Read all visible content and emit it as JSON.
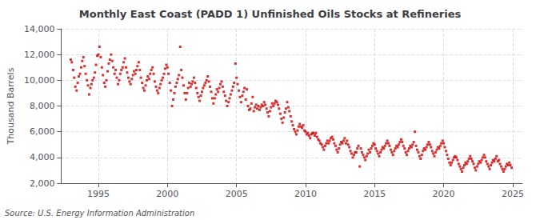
{
  "chart_data": {
    "type": "scatter",
    "title": "Monthly East Coast (PADD 1) Unfinished Oils Stocks at Refineries",
    "ylabel": "Thousand Barrels",
    "annotation": "Source: U.S. Energy Information Administration",
    "color": "#cc0000",
    "marker": "square",
    "grid": true,
    "xlim": [
      1992.3,
      2025.7
    ],
    "xticks": [
      1995,
      2000,
      2005,
      2010,
      2015,
      2020,
      2025
    ],
    "ylim": [
      2000,
      14000
    ],
    "yticks": [
      {
        "value": 2000,
        "label": "2,000"
      },
      {
        "value": 4000,
        "label": "4,000"
      },
      {
        "value": 6000,
        "label": "6,000"
      },
      {
        "value": 8000,
        "label": "8,000"
      },
      {
        "value": 10000,
        "label": "10,000"
      },
      {
        "value": 12000,
        "label": "12,000"
      },
      {
        "value": 14000,
        "label": "14,000"
      }
    ],
    "x": [
      1993.0,
      1993.08,
      1993.17,
      1993.25,
      1993.33,
      1993.42,
      1993.5,
      1993.58,
      1993.67,
      1993.75,
      1993.83,
      1993.92,
      1994.0,
      1994.08,
      1994.17,
      1994.25,
      1994.33,
      1994.42,
      1994.5,
      1994.58,
      1994.67,
      1994.75,
      1994.83,
      1994.92,
      1995.0,
      1995.08,
      1995.17,
      1995.25,
      1995.33,
      1995.42,
      1995.5,
      1995.58,
      1995.67,
      1995.75,
      1995.83,
      1995.92,
      1996.0,
      1996.08,
      1996.17,
      1996.25,
      1996.33,
      1996.42,
      1996.5,
      1996.58,
      1996.67,
      1996.75,
      1996.83,
      1996.92,
      1997.0,
      1997.08,
      1997.17,
      1997.25,
      1997.33,
      1997.42,
      1997.5,
      1997.58,
      1997.67,
      1997.75,
      1997.83,
      1997.92,
      1998.0,
      1998.08,
      1998.17,
      1998.25,
      1998.33,
      1998.42,
      1998.5,
      1998.58,
      1998.67,
      1998.75,
      1998.83,
      1998.92,
      1999.0,
      1999.08,
      1999.17,
      1999.25,
      1999.33,
      1999.42,
      1999.5,
      1999.58,
      1999.67,
      1999.75,
      1999.83,
      1999.92,
      2000.0,
      2000.08,
      2000.17,
      2000.25,
      2000.33,
      2000.42,
      2000.5,
      2000.58,
      2000.67,
      2000.75,
      2000.83,
      2000.92,
      2001.0,
      2001.08,
      2001.17,
      2001.25,
      2001.33,
      2001.42,
      2001.5,
      2001.58,
      2001.67,
      2001.75,
      2001.83,
      2001.92,
      2002.0,
      2002.08,
      2002.17,
      2002.25,
      2002.33,
      2002.42,
      2002.5,
      2002.58,
      2002.67,
      2002.75,
      2002.83,
      2002.92,
      2003.0,
      2003.08,
      2003.17,
      2003.25,
      2003.33,
      2003.42,
      2003.5,
      2003.58,
      2003.67,
      2003.75,
      2003.83,
      2003.92,
      2004.0,
      2004.08,
      2004.17,
      2004.25,
      2004.33,
      2004.42,
      2004.5,
      2004.58,
      2004.67,
      2004.75,
      2004.83,
      2004.92,
      2005.0,
      2005.08,
      2005.17,
      2005.25,
      2005.33,
      2005.42,
      2005.5,
      2005.58,
      2005.67,
      2005.75,
      2005.83,
      2005.92,
      2006.0,
      2006.08,
      2006.17,
      2006.25,
      2006.33,
      2006.42,
      2006.5,
      2006.58,
      2006.67,
      2006.75,
      2006.83,
      2006.92,
      2007.0,
      2007.08,
      2007.17,
      2007.25,
      2007.33,
      2007.42,
      2007.5,
      2007.58,
      2007.67,
      2007.75,
      2007.83,
      2007.92,
      2008.0,
      2008.08,
      2008.17,
      2008.25,
      2008.33,
      2008.42,
      2008.5,
      2008.58,
      2008.67,
      2008.75,
      2008.83,
      2008.92,
      2009.0,
      2009.08,
      2009.17,
      2009.25,
      2009.33,
      2009.42,
      2009.5,
      2009.58,
      2009.67,
      2009.75,
      2009.83,
      2009.92,
      2010.0,
      2010.08,
      2010.17,
      2010.25,
      2010.33,
      2010.42,
      2010.5,
      2010.58,
      2010.67,
      2010.75,
      2010.83,
      2010.92,
      2011.0,
      2011.08,
      2011.17,
      2011.25,
      2011.33,
      2011.42,
      2011.5,
      2011.58,
      2011.67,
      2011.75,
      2011.83,
      2011.92,
      2012.0,
      2012.08,
      2012.17,
      2012.25,
      2012.33,
      2012.42,
      2012.5,
      2012.58,
      2012.67,
      2012.75,
      2012.83,
      2012.92,
      2013.0,
      2013.08,
      2013.17,
      2013.25,
      2013.33,
      2013.42,
      2013.5,
      2013.58,
      2013.67,
      2013.75,
      2013.83,
      2013.92,
      2014.0,
      2014.08,
      2014.17,
      2014.25,
      2014.33,
      2014.42,
      2014.5,
      2014.58,
      2014.67,
      2014.75,
      2014.83,
      2014.92,
      2015.0,
      2015.08,
      2015.17,
      2015.25,
      2015.33,
      2015.42,
      2015.5,
      2015.58,
      2015.67,
      2015.75,
      2015.83,
      2015.92,
      2016.0,
      2016.08,
      2016.17,
      2016.25,
      2016.33,
      2016.42,
      2016.5,
      2016.58,
      2016.67,
      2016.75,
      2016.83,
      2016.92,
      2017.0,
      2017.08,
      2017.17,
      2017.25,
      2017.33,
      2017.42,
      2017.5,
      2017.58,
      2017.67,
      2017.75,
      2017.83,
      2017.92,
      2018.0,
      2018.08,
      2018.17,
      2018.25,
      2018.33,
      2018.42,
      2018.5,
      2018.58,
      2018.67,
      2018.75,
      2018.83,
      2018.92,
      2019.0,
      2019.08,
      2019.17,
      2019.25,
      2019.33,
      2019.42,
      2019.5,
      2019.58,
      2019.67,
      2019.75,
      2019.83,
      2019.92,
      2020.0,
      2020.08,
      2020.17,
      2020.25,
      2020.33,
      2020.42,
      2020.5,
      2020.58,
      2020.67,
      2020.75,
      2020.83,
      2020.92,
      2021.0,
      2021.08,
      2021.17,
      2021.25,
      2021.33,
      2021.42,
      2021.5,
      2021.58,
      2021.67,
      2021.75,
      2021.83,
      2021.92,
      2022.0,
      2022.08,
      2022.17,
      2022.25,
      2022.33,
      2022.42,
      2022.5,
      2022.58,
      2022.67,
      2022.75,
      2022.83,
      2022.92,
      2023.0,
      2023.08,
      2023.17,
      2023.25,
      2023.33,
      2023.42,
      2023.5,
      2023.58,
      2023.67,
      2023.75,
      2023.83,
      2023.92,
      2024.0,
      2024.08,
      2024.17,
      2024.25,
      2024.33,
      2024.42,
      2024.5,
      2024.58,
      2024.67,
      2024.75,
      2024.83,
      2024.92
    ],
    "values": [
      11600,
      11400,
      10800,
      10200,
      9500,
      9200,
      9800,
      10300,
      10500,
      11000,
      11500,
      11800,
      11100,
      10500,
      10000,
      9600,
      8900,
      9400,
      9700,
      10000,
      10200,
      10600,
      11200,
      11900,
      12000,
      12600,
      11800,
      11000,
      10400,
      9800,
      9500,
      10000,
      10700,
      11300,
      11600,
      12000,
      11500,
      11000,
      10500,
      10800,
      10200,
      9700,
      10000,
      10500,
      10800,
      11000,
      11400,
      11700,
      11000,
      10600,
      10200,
      9900,
      9700,
      10100,
      10400,
      10700,
      10500,
      10800,
      11100,
      11400,
      10800,
      10200,
      9800,
      9400,
      9200,
      9600,
      10000,
      10300,
      10100,
      10500,
      10800,
      11000,
      10500,
      9900,
      9500,
      9200,
      9000,
      9400,
      9700,
      10000,
      10200,
      10500,
      10900,
      11200,
      11000,
      10500,
      9800,
      9200,
      8000,
      8500,
      9000,
      9500,
      9800,
      10100,
      10400,
      12600,
      10800,
      10200,
      9600,
      9000,
      8500,
      9000,
      9400,
      9800,
      9500,
      9700,
      9900,
      10200,
      9800,
      9400,
      9000,
      8700,
      8400,
      8800,
      9100,
      9400,
      9600,
      9800,
      10000,
      10300,
      9900,
      9500,
      9100,
      8600,
      8200,
      8600,
      8900,
      9300,
      9100,
      9400,
      9700,
      9900,
      9500,
      9100,
      8800,
      8400,
      8000,
      8300,
      8600,
      8900,
      9200,
      9500,
      9800,
      11300,
      10200,
      9700,
      9200,
      8700,
      8300,
      8800,
      9100,
      9400,
      8500,
      9300,
      8000,
      7700,
      7800,
      8200,
      8700,
      7600,
      7900,
      8100,
      7800,
      8000,
      7700,
      7900,
      8100,
      8000,
      8300,
      8100,
      7800,
      7500,
      7200,
      7600,
      7900,
      8200,
      8000,
      8200,
      8400,
      8300,
      8100,
      7800,
      7400,
      7000,
      6700,
      7100,
      7500,
      7800,
      8300,
      7900,
      7600,
      7200,
      6800,
      6500,
      6200,
      6000,
      5800,
      6100,
      6400,
      6600,
      6400,
      6300,
      6500,
      6100,
      6000,
      5800,
      5900,
      5700,
      5500,
      5800,
      5900,
      5900,
      5700,
      5900,
      5600,
      5400,
      5300,
      5100,
      5000,
      4800,
      4600,
      4900,
      5100,
      5300,
      5100,
      5300,
      5500,
      5600,
      5400,
      5100,
      4900,
      4600,
      4400,
      4700,
      5000,
      5200,
      5100,
      5300,
      5500,
      5100,
      5300,
      5000,
      4800,
      4500,
      4300,
      4000,
      4200,
      4400,
      4400,
      4700,
      4900,
      3300,
      4700,
      4400,
      4200,
      4000,
      3800,
      4100,
      4300,
      4600,
      4400,
      4700,
      4900,
      5100,
      5000,
      4700,
      4500,
      4300,
      4100,
      4400,
      4600,
      4800,
      4700,
      4900,
      5100,
      5300,
      5100,
      4900,
      4600,
      4400,
      4200,
      4500,
      4700,
      4900,
      4800,
      5000,
      5200,
      5400,
      5200,
      4900,
      4700,
      4400,
      4200,
      4500,
      4700,
      4900,
      4800,
      5000,
      5200,
      6000,
      4900,
      4600,
      4400,
      4100,
      3900,
      4200,
      4500,
      4700,
      4600,
      4800,
      5000,
      5200,
      5000,
      4800,
      4500,
      4300,
      4100,
      4400,
      4600,
      4800,
      4700,
      4900,
      5100,
      5300,
      5100,
      4800,
      4500,
      4200,
      3900,
      3600,
      3400,
      3600,
      3800,
      4000,
      4100,
      4000,
      3800,
      3500,
      3300,
      3100,
      2900,
      3200,
      3400,
      3600,
      3500,
      3700,
      3900,
      4100,
      3900,
      3700,
      3500,
      3200,
      3000,
      3300,
      3500,
      3700,
      3600,
      3800,
      4000,
      4200,
      4000,
      3700,
      3500,
      3300,
      3100,
      3400,
      3600,
      3800,
      3700,
      3900,
      4100,
      3700,
      3800,
      3500,
      3300,
      3100,
      2900,
      3100,
      3300,
      3500,
      3400,
      3600,
      3400,
      3200
    ]
  }
}
